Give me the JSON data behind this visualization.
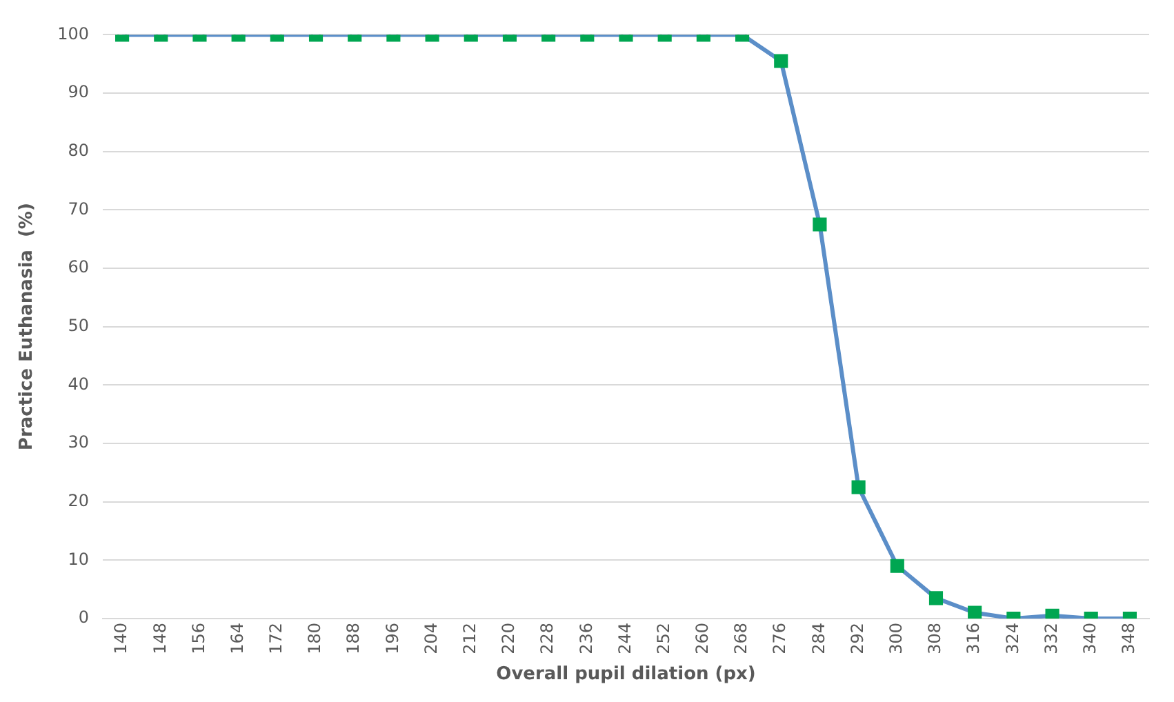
{
  "chart_data": {
    "type": "line",
    "xlabel": "Overall pupil dilation (px)",
    "ylabel": "Practice Euthanasia  (%)",
    "categories": [
      "140",
      "148",
      "156",
      "164",
      "172",
      "180",
      "188",
      "196",
      "204",
      "212",
      "220",
      "228",
      "236",
      "244",
      "252",
      "260",
      "268",
      "276",
      "284",
      "292",
      "300",
      "308",
      "316",
      "324",
      "332",
      "340",
      "348"
    ],
    "series": [
      {
        "color": "#5b8ec8",
        "colors": [
          "#00a651",
          "#00a651",
          "#00a651",
          "#00a651",
          "#00a651",
          "#00a651",
          "#00a651",
          "#00a651",
          "#00a651",
          "#00a651",
          "#00a651",
          "#00a651",
          "#00a651",
          "#00a651",
          "#00a651",
          "#00a651",
          "#00a651",
          "#00a651",
          "#00a651",
          "#00a651",
          "#00a651",
          "#00a651",
          "#00a651",
          "#00a651",
          "#00a651",
          "#00a651",
          "#00a651"
        ],
        "values": [
          100,
          100,
          100,
          100,
          100,
          100,
          100,
          100,
          100,
          100,
          100,
          100,
          100,
          100,
          100,
          100,
          100,
          95.5,
          67.5,
          22.5,
          9,
          3.5,
          1,
          0,
          0.5,
          0,
          0
        ]
      }
    ],
    "ylim": [
      0,
      100
    ],
    "yticks": [
      0,
      10,
      20,
      30,
      40,
      50,
      60,
      70,
      80,
      90,
      100
    ],
    "grid": "y",
    "legend": false,
    "marker": "square",
    "line_style": "solid"
  }
}
